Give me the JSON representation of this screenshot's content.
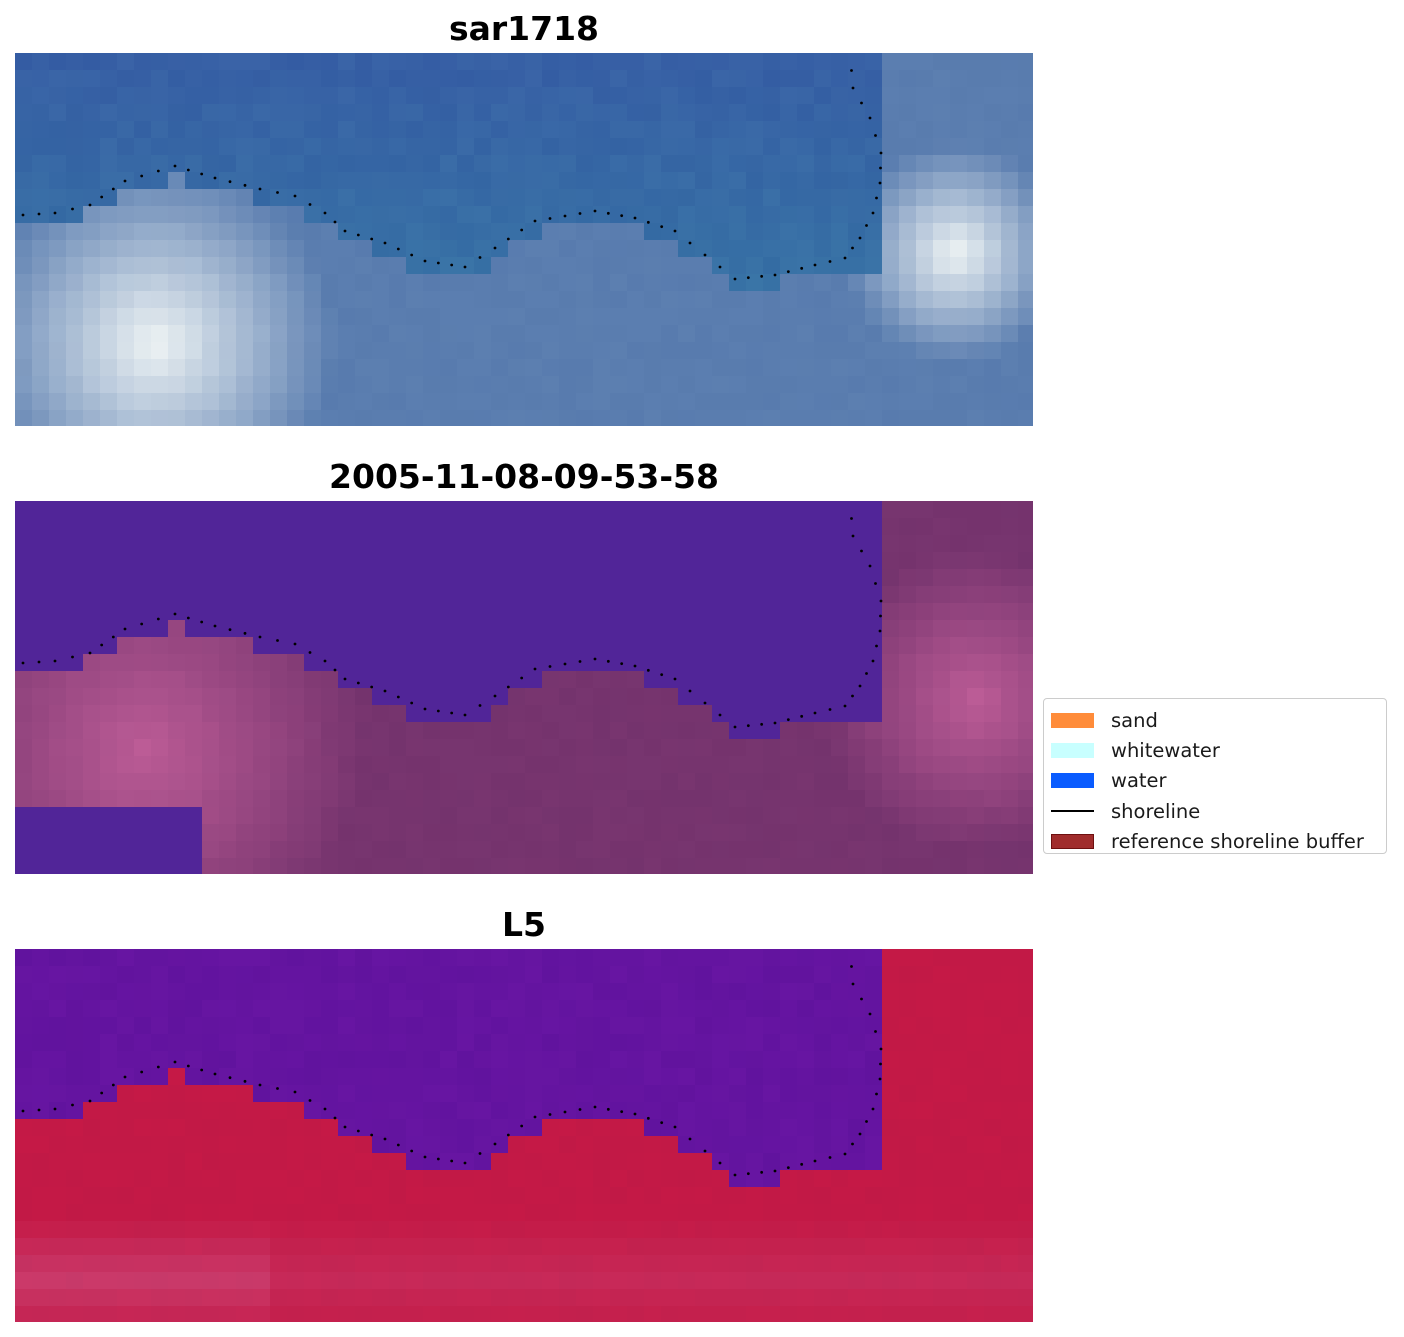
{
  "panels": [
    {
      "title": "sar1718",
      "theme": "rgb"
    },
    {
      "title": "2005-11-08-09-53-58",
      "theme": "classified"
    },
    {
      "title": "L5",
      "theme": "index"
    }
  ],
  "legend": {
    "items": [
      {
        "label": "sand",
        "color": "#ff8c3a",
        "kind": "patch"
      },
      {
        "label": "whitewater",
        "color": "#c8ffff",
        "kind": "patch"
      },
      {
        "label": "water",
        "color": "#0a5cff",
        "kind": "patch"
      },
      {
        "label": "shoreline",
        "color": "#000000",
        "kind": "line"
      },
      {
        "label": "reference shoreline buffer",
        "color": "#a02c2c",
        "kind": "patch"
      }
    ]
  },
  "colors": {
    "water_class": "#512598",
    "land_class": "#7f3b77",
    "index_water": "#6a14a0",
    "index_land": "#c8163f",
    "shoreline_dots": "#000000"
  }
}
